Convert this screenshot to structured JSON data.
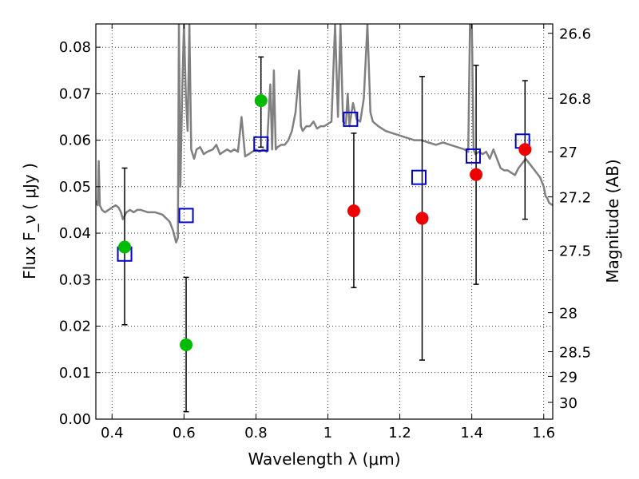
{
  "chart_data": {
    "type": "scatter",
    "xlabel": "Wavelength  λ (μm)",
    "ylabel": "Flux  F_ν ( μJy )",
    "ylabel_right": "Magnitude (AB)",
    "xlim": [
      0.355,
      1.625
    ],
    "ylim": [
      0.0,
      0.085
    ],
    "grid": true,
    "x_ticks": [
      {
        "value": 0.4,
        "label": "0.4"
      },
      {
        "value": 0.6,
        "label": "0.6"
      },
      {
        "value": 0.8,
        "label": "0.8"
      },
      {
        "value": 1.0,
        "label": "1"
      },
      {
        "value": 1.2,
        "label": "1.2"
      },
      {
        "value": 1.4,
        "label": "1.4"
      },
      {
        "value": 1.6,
        "label": "1.6"
      }
    ],
    "y_ticks": [
      {
        "value": 0.0,
        "label": "0.00"
      },
      {
        "value": 0.01,
        "label": "0.01"
      },
      {
        "value": 0.02,
        "label": "0.02"
      },
      {
        "value": 0.03,
        "label": "0.03"
      },
      {
        "value": 0.04,
        "label": "0.04"
      },
      {
        "value": 0.05,
        "label": "0.05"
      },
      {
        "value": 0.06,
        "label": "0.06"
      },
      {
        "value": 0.07,
        "label": "0.07"
      },
      {
        "value": 0.08,
        "label": "0.08"
      }
    ],
    "right_ticks": [
      {
        "flux": 0.083,
        "label": "26.6"
      },
      {
        "flux": 0.069,
        "label": "26.8"
      },
      {
        "flux": 0.0575,
        "label": "27"
      },
      {
        "flux": 0.0478,
        "label": "27.2"
      },
      {
        "flux": 0.0363,
        "label": "27.5"
      },
      {
        "flux": 0.0229,
        "label": "28"
      },
      {
        "flux": 0.0145,
        "label": "28.5"
      },
      {
        "flux": 0.0092,
        "label": "29"
      },
      {
        "flux": 0.0036,
        "label": "30"
      }
    ],
    "series": [
      {
        "kind": "squares",
        "color": "#0000cc",
        "points": [
          {
            "x": 0.435,
            "y": 0.0355
          },
          {
            "x": 0.606,
            "y": 0.0438
          },
          {
            "x": 0.814,
            "y": 0.0592
          },
          {
            "x": 1.063,
            "y": 0.0645
          },
          {
            "x": 1.253,
            "y": 0.052
          },
          {
            "x": 1.404,
            "y": 0.0566
          },
          {
            "x": 1.541,
            "y": 0.0598
          }
        ]
      },
      {
        "kind": "green-dots",
        "color": "#00bb00",
        "points": [
          {
            "x": 0.435,
            "y": 0.037,
            "lo": 0.0203,
            "hi": 0.054
          },
          {
            "x": 0.606,
            "y": 0.016,
            "lo": 0.0016,
            "hi": 0.0305
          },
          {
            "x": 0.814,
            "y": 0.0685,
            "lo": 0.0585,
            "hi": 0.0779
          }
        ]
      },
      {
        "kind": "red-dots",
        "color": "#ee0000",
        "points": [
          {
            "x": 1.072,
            "y": 0.0448,
            "lo": 0.0283,
            "hi": 0.0615
          },
          {
            "x": 1.262,
            "y": 0.0432,
            "lo": 0.0127,
            "hi": 0.0737
          },
          {
            "x": 1.412,
            "y": 0.0526,
            "lo": 0.029,
            "hi": 0.0761
          },
          {
            "x": 1.548,
            "y": 0.058,
            "lo": 0.043,
            "hi": 0.0728
          }
        ]
      }
    ],
    "spectrum": {
      "color": "#808080",
      "points": [
        [
          0.355,
          0.047
        ],
        [
          0.36,
          0.046
        ],
        [
          0.363,
          0.0555
        ],
        [
          0.366,
          0.046
        ],
        [
          0.372,
          0.045
        ],
        [
          0.38,
          0.0445
        ],
        [
          0.39,
          0.045
        ],
        [
          0.4,
          0.0455
        ],
        [
          0.41,
          0.046
        ],
        [
          0.418,
          0.0455
        ],
        [
          0.425,
          0.0445
        ],
        [
          0.43,
          0.043
        ],
        [
          0.44,
          0.0445
        ],
        [
          0.45,
          0.045
        ],
        [
          0.46,
          0.0445
        ],
        [
          0.47,
          0.045
        ],
        [
          0.48,
          0.045
        ],
        [
          0.5,
          0.0445
        ],
        [
          0.52,
          0.0445
        ],
        [
          0.54,
          0.044
        ],
        [
          0.56,
          0.0425
        ],
        [
          0.57,
          0.0405
        ],
        [
          0.578,
          0.038
        ],
        [
          0.583,
          0.039
        ],
        [
          0.586,
          0.085
        ],
        [
          0.59,
          0.05
        ],
        [
          0.595,
          0.07
        ],
        [
          0.6,
          0.085
        ],
        [
          0.605,
          0.07
        ],
        [
          0.61,
          0.062
        ],
        [
          0.615,
          0.085
        ],
        [
          0.62,
          0.058
        ],
        [
          0.628,
          0.056
        ],
        [
          0.635,
          0.058
        ],
        [
          0.645,
          0.0585
        ],
        [
          0.655,
          0.057
        ],
        [
          0.665,
          0.0575
        ],
        [
          0.68,
          0.058
        ],
        [
          0.69,
          0.059
        ],
        [
          0.7,
          0.057
        ],
        [
          0.71,
          0.0575
        ],
        [
          0.72,
          0.058
        ],
        [
          0.73,
          0.0575
        ],
        [
          0.74,
          0.058
        ],
        [
          0.75,
          0.0575
        ],
        [
          0.76,
          0.065
        ],
        [
          0.77,
          0.0565
        ],
        [
          0.78,
          0.057
        ],
        [
          0.79,
          0.0575
        ],
        [
          0.8,
          0.058
        ],
        [
          0.81,
          0.0575
        ],
        [
          0.82,
          0.058
        ],
        [
          0.83,
          0.0575
        ],
        [
          0.84,
          0.072
        ],
        [
          0.845,
          0.058
        ],
        [
          0.85,
          0.075
        ],
        [
          0.855,
          0.058
        ],
        [
          0.86,
          0.0585
        ],
        [
          0.87,
          0.059
        ],
        [
          0.88,
          0.059
        ],
        [
          0.89,
          0.06
        ],
        [
          0.9,
          0.062
        ],
        [
          0.91,
          0.066
        ],
        [
          0.92,
          0.075
        ],
        [
          0.925,
          0.063
        ],
        [
          0.93,
          0.062
        ],
        [
          0.94,
          0.063
        ],
        [
          0.95,
          0.063
        ],
        [
          0.96,
          0.064
        ],
        [
          0.97,
          0.0625
        ],
        [
          0.98,
          0.063
        ],
        [
          0.99,
          0.063
        ],
        [
          1.0,
          0.0635
        ],
        [
          1.01,
          0.064
        ],
        [
          1.02,
          0.085
        ],
        [
          1.028,
          0.065
        ],
        [
          1.035,
          0.085
        ],
        [
          1.042,
          0.064
        ],
        [
          1.05,
          0.0635
        ],
        [
          1.055,
          0.07
        ],
        [
          1.06,
          0.063
        ],
        [
          1.07,
          0.068
        ],
        [
          1.08,
          0.0645
        ],
        [
          1.09,
          0.064
        ],
        [
          1.1,
          0.069
        ],
        [
          1.11,
          0.085
        ],
        [
          1.118,
          0.066
        ],
        [
          1.125,
          0.064
        ],
        [
          1.14,
          0.063
        ],
        [
          1.16,
          0.062
        ],
        [
          1.18,
          0.0615
        ],
        [
          1.2,
          0.061
        ],
        [
          1.22,
          0.0605
        ],
        [
          1.24,
          0.06
        ],
        [
          1.26,
          0.06
        ],
        [
          1.28,
          0.0595
        ],
        [
          1.3,
          0.059
        ],
        [
          1.32,
          0.0595
        ],
        [
          1.34,
          0.059
        ],
        [
          1.36,
          0.0585
        ],
        [
          1.38,
          0.058
        ],
        [
          1.39,
          0.0575
        ],
        [
          1.395,
          0.085
        ],
        [
          1.4,
          0.085
        ],
        [
          1.405,
          0.058
        ],
        [
          1.41,
          0.057
        ],
        [
          1.42,
          0.0575
        ],
        [
          1.43,
          0.057
        ],
        [
          1.44,
          0.0575
        ],
        [
          1.45,
          0.056
        ],
        [
          1.46,
          0.058
        ],
        [
          1.47,
          0.056
        ],
        [
          1.48,
          0.054
        ],
        [
          1.49,
          0.0535
        ],
        [
          1.5,
          0.0535
        ],
        [
          1.51,
          0.053
        ],
        [
          1.52,
          0.0525
        ],
        [
          1.53,
          0.054
        ],
        [
          1.54,
          0.055
        ],
        [
          1.55,
          0.056
        ],
        [
          1.56,
          0.055
        ],
        [
          1.57,
          0.054
        ],
        [
          1.58,
          0.053
        ],
        [
          1.59,
          0.052
        ],
        [
          1.6,
          0.05
        ],
        [
          1.605,
          0.048
        ],
        [
          1.61,
          0.0475
        ],
        [
          1.615,
          0.0465
        ],
        [
          1.625,
          0.046
        ]
      ]
    }
  }
}
